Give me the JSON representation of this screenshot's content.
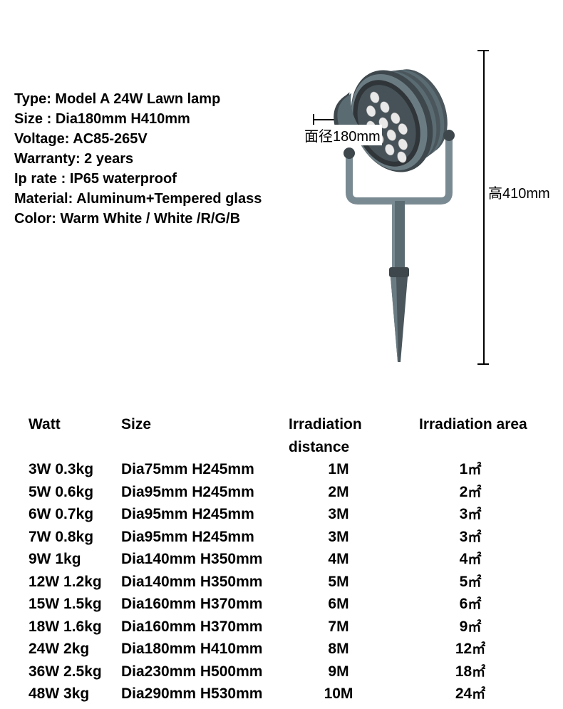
{
  "specs": {
    "label_type": "Type:",
    "type": "Model A 24W  Lawn lamp",
    "label_size": "Size :",
    "size": "Dia180mm H410mm",
    "label_voltage": "Voltage:",
    "voltage": "AC85-265V",
    "label_warranty": "Warranty:",
    "warranty": "2 years",
    "label_ip": "Ip rate :",
    "ip": "IP65 waterproof",
    "label_material": "Material:",
    "material": "Aluminum+Tempered glass",
    "label_color": "Color:",
    "color": "Warm White / White /R/G/B"
  },
  "diagram": {
    "width_label": "面径180mm",
    "height_label": "高410mm",
    "housing_color": "#5a6b72",
    "housing_dark": "#3d474c",
    "led_color": "#e8e8e8",
    "bracket_color": "#7a8a92",
    "spike_color": "#4a565c"
  },
  "table": {
    "headers": {
      "watt": "Watt",
      "size": "Size",
      "distance": "Irradiation distance",
      "area": "Irradiation area"
    },
    "unit_area": "㎡",
    "rows": [
      {
        "watt": "3W 0.3kg",
        "size": "Dia75mm H245mm",
        "distance": "1M",
        "area": "1"
      },
      {
        "watt": "5W 0.6kg",
        "size": "Dia95mm H245mm",
        "distance": "2M",
        "area": "2"
      },
      {
        "watt": "6W 0.7kg",
        "size": "Dia95mm H245mm",
        "distance": "3M",
        "area": "3"
      },
      {
        "watt": "7W 0.8kg",
        "size": "Dia95mm H245mm",
        "distance": "3M",
        "area": "3"
      },
      {
        "watt": "9W 1kg",
        "size": "Dia140mm H350mm",
        "distance": "4M",
        "area": "4"
      },
      {
        "watt": "12W 1.2kg",
        "size": "Dia140mm H350mm",
        "distance": "5M",
        "area": "5"
      },
      {
        "watt": "15W 1.5kg",
        "size": "Dia160mm H370mm",
        "distance": "6M",
        "area": "6"
      },
      {
        "watt": "18W 1.6kg",
        "size": "Dia160mm H370mm",
        "distance": "7M",
        "area": "9"
      },
      {
        "watt": "24W 2kg",
        "size": "Dia180mm H410mm",
        "distance": "8M",
        "area": "12"
      },
      {
        "watt": "36W 2.5kg",
        "size": "Dia230mm H500mm",
        "distance": "9M",
        "area": "18"
      },
      {
        "watt": "48W  3kg",
        "size": "Dia290mm H530mm",
        "distance": "10M",
        "area": "24"
      }
    ]
  },
  "styling": {
    "background_color": "#ffffff",
    "text_color": "#000000",
    "spec_fontsize_pt": 15,
    "table_fontsize_pt": 16,
    "font_weight": 700,
    "font_family": "Arial"
  }
}
